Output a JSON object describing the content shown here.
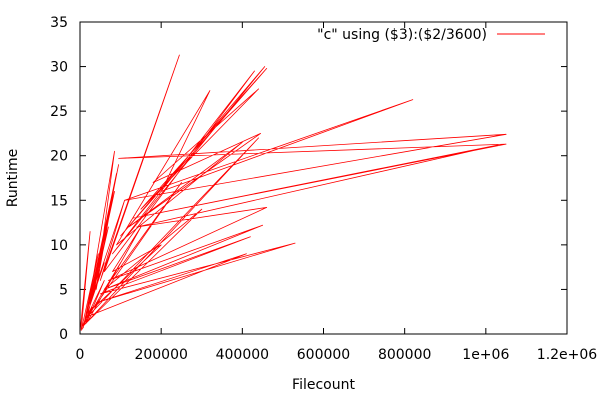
{
  "chart_data": {
    "type": "line",
    "title": "",
    "xlabel": "Filecount",
    "ylabel": "Runtime",
    "xlim": [
      0,
      1200000
    ],
    "ylim": [
      0,
      35
    ],
    "x_ticks": [
      0,
      200000,
      400000,
      600000,
      800000,
      1000000,
      1200000
    ],
    "x_tick_labels": [
      "0",
      "200000",
      "400000",
      "600000",
      "800000",
      "1e+06",
      "1.2e+06"
    ],
    "y_ticks": [
      0,
      5,
      10,
      15,
      20,
      25,
      30,
      35
    ],
    "y_tick_labels": [
      "0",
      "5",
      "10",
      "15",
      "20",
      "25",
      "30",
      "35"
    ],
    "grid": false,
    "legend_position": "top-right",
    "series_color": "#ff0000",
    "series": [
      {
        "name": "\"c\" using ($3):($2/3600)",
        "x": [
          5000,
          30000,
          12000,
          60000,
          20000,
          85000,
          40000,
          90000,
          15000,
          70000,
          30000,
          95000,
          25000,
          110000,
          50000,
          245000,
          60000,
          430000,
          80000,
          455000,
          100000,
          460000,
          150000,
          440000,
          180000,
          445000,
          120000,
          400000,
          90000,
          320000,
          200000,
          820000,
          110000,
          1050000,
          95000,
          1050000,
          130000,
          1030000,
          140000,
          460000,
          70000,
          450000,
          60000,
          420000,
          50000,
          530000,
          40000,
          410000,
          20000,
          440000,
          10000,
          300000,
          60000,
          250000,
          35000,
          200000,
          80000,
          150000,
          20000,
          100000,
          5000,
          60000,
          15000,
          85000,
          8000,
          45000,
          3000,
          25000,
          0
        ],
        "y": [
          0.5,
          3.0,
          1.5,
          8.0,
          3.0,
          20.5,
          5.0,
          18.0,
          2.0,
          12.0,
          4.0,
          19.0,
          3.5,
          15.0,
          6.0,
          31.3,
          7.0,
          29.5,
          9.0,
          30.0,
          11.0,
          29.8,
          14.0,
          27.5,
          17.0,
          22.5,
          12.0,
          21.5,
          10.0,
          27.3,
          16.0,
          26.3,
          15.0,
          22.4,
          19.7,
          21.3,
          13.0,
          21.2,
          12.0,
          14.2,
          6.0,
          12.2,
          5.0,
          10.9,
          4.5,
          10.2,
          3.5,
          9.0,
          2.0,
          22.0,
          1.0,
          14.0,
          5.0,
          17.0,
          3.0,
          10.0,
          7.0,
          12.0,
          1.5,
          8.0,
          0.8,
          6.0,
          1.2,
          16.0,
          0.7,
          9.0,
          0.4,
          11.5,
          0.2
        ]
      }
    ]
  }
}
